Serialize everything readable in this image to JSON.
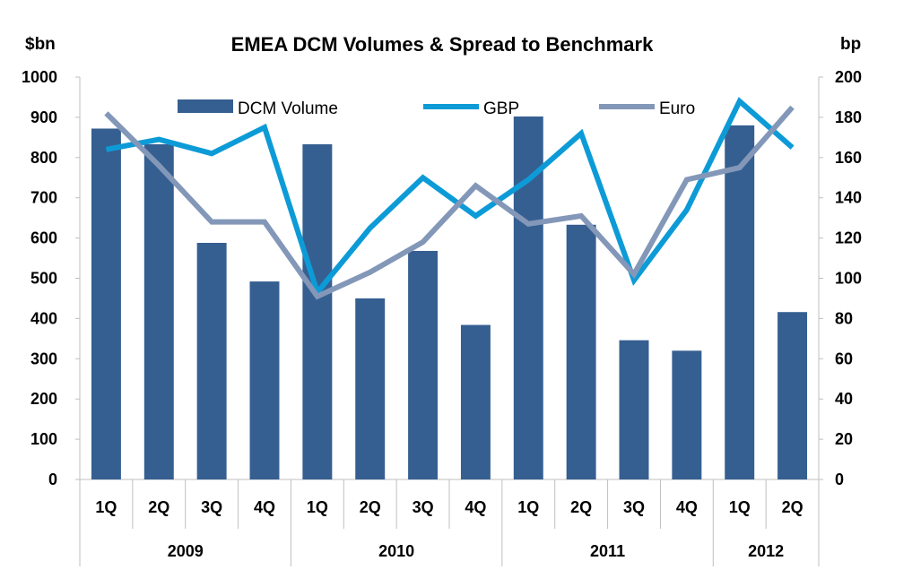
{
  "chart_data": {
    "type": "bar",
    "title": "EMEA DCM Volumes & Spread to Benchmark",
    "ylabel_left": "$bn",
    "ylabel_right": "bp",
    "ylim_left": [
      0,
      1000
    ],
    "ylim_right": [
      0,
      200
    ],
    "yticks_left": [
      "0",
      "100",
      "200",
      "300",
      "400",
      "500",
      "600",
      "700",
      "800",
      "900",
      "1000"
    ],
    "yticks_right": [
      "0",
      "20",
      "40",
      "60",
      "80",
      "100",
      "120",
      "140",
      "160",
      "180",
      "200"
    ],
    "categories": [
      "1Q",
      "2Q",
      "3Q",
      "4Q",
      "1Q",
      "2Q",
      "3Q",
      "4Q",
      "1Q",
      "2Q",
      "3Q",
      "4Q",
      "1Q",
      "2Q"
    ],
    "years": [
      {
        "label": "2009",
        "span": 4
      },
      {
        "label": "2010",
        "span": 4
      },
      {
        "label": "2011",
        "span": 4
      },
      {
        "label": "2012",
        "span": 2
      }
    ],
    "series": [
      {
        "name": "DCM Volume",
        "type": "bar",
        "axis": "left",
        "color": "#365f91",
        "values": [
          872,
          833,
          588,
          492,
          833,
          450,
          568,
          384,
          902,
          633,
          346,
          320,
          880,
          416
        ]
      },
      {
        "name": "GBP",
        "type": "line",
        "axis": "right",
        "color": "#0d9bd7",
        "values": [
          164,
          169,
          162,
          175,
          93,
          125,
          150,
          131,
          149,
          172,
          99,
          134,
          188,
          165
        ]
      },
      {
        "name": "Euro",
        "type": "line",
        "axis": "right",
        "color": "#8397b8",
        "values": [
          182,
          156,
          128,
          128,
          91,
          103,
          118,
          146,
          127,
          131,
          102,
          149,
          155,
          185
        ]
      }
    ]
  }
}
